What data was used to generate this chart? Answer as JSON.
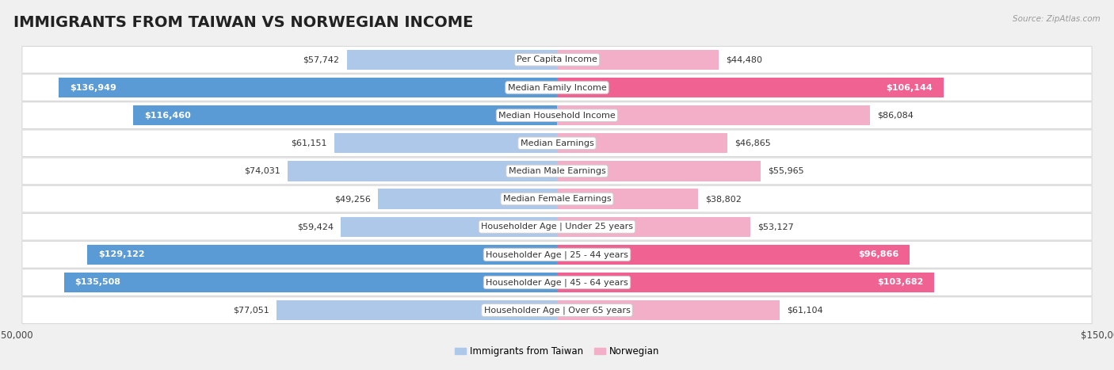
{
  "title": "IMMIGRANTS FROM TAIWAN VS NORWEGIAN INCOME",
  "source": "Source: ZipAtlas.com",
  "categories": [
    "Per Capita Income",
    "Median Family Income",
    "Median Household Income",
    "Median Earnings",
    "Median Male Earnings",
    "Median Female Earnings",
    "Householder Age | Under 25 years",
    "Householder Age | 25 - 44 years",
    "Householder Age | 45 - 64 years",
    "Householder Age | Over 65 years"
  ],
  "taiwan_values": [
    57742,
    136949,
    116460,
    61151,
    74031,
    49256,
    59424,
    129122,
    135508,
    77051
  ],
  "norwegian_values": [
    44480,
    106144,
    86084,
    46865,
    55965,
    38802,
    53127,
    96866,
    103682,
    61104
  ],
  "taiwan_color_light": "#adc8e8",
  "taiwan_color_dark": "#5b9bd5",
  "norwegian_color_light": "#f4afc8",
  "norwegian_color_dark": "#f06292",
  "max_value": 150000,
  "background_color": "#f0f0f0",
  "row_bg_color": "#ffffff",
  "legend_taiwan": "Immigrants from Taiwan",
  "legend_norwegian": "Norwegian",
  "xlim": 150000,
  "bar_height": 0.72,
  "dark_threshold_taiwan": 90000,
  "dark_threshold_norwegian": 90000,
  "title_fontsize": 14,
  "label_fontsize": 8,
  "value_fontsize": 8
}
